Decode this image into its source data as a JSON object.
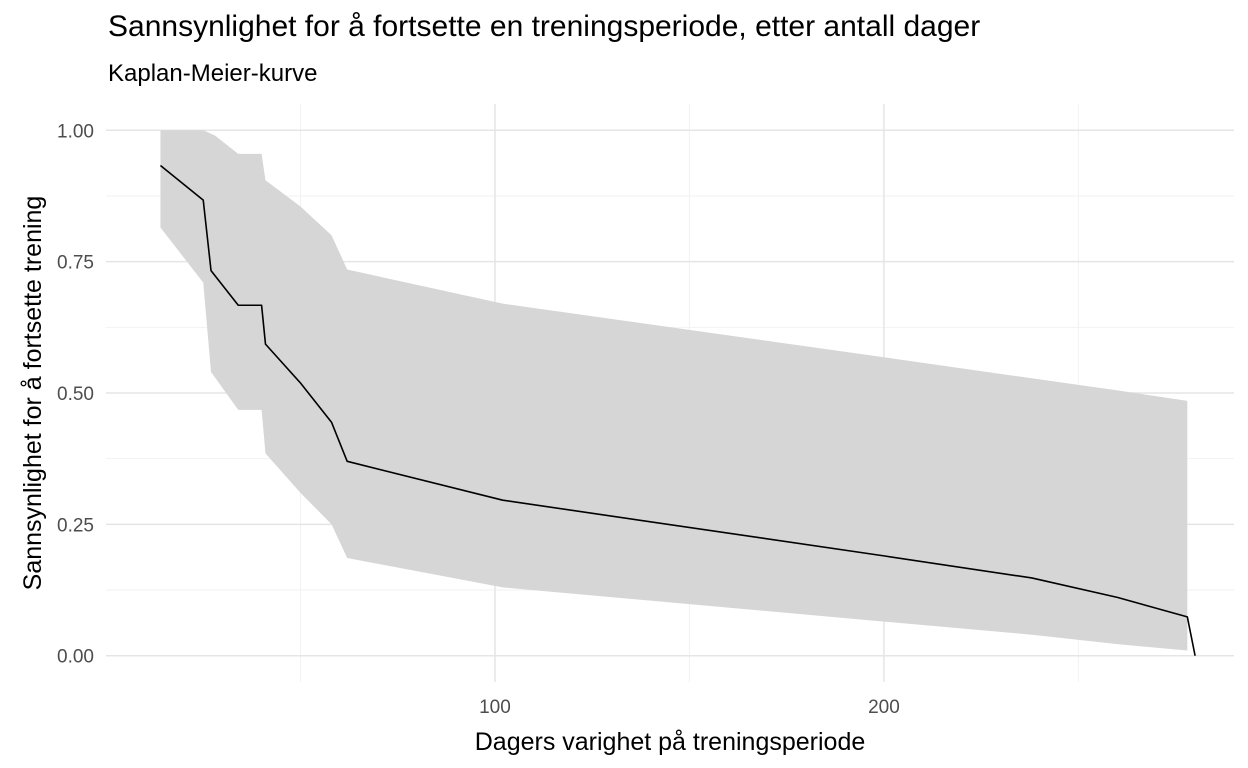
{
  "chart_data": {
    "type": "line",
    "title": "Sannsynlighet for å fortsette en treningsperiode, etter antall dager",
    "subtitle": "Kaplan-Meier-kurve",
    "xlabel": "Dagers varighet på treningsperiode",
    "ylabel": "Sannsynlighet for å fortsette trening",
    "xlim": [
      0,
      290
    ],
    "ylim": [
      -0.05,
      1.05
    ],
    "x_ticks": [
      100,
      200
    ],
    "x_tick_labels": [
      "100",
      "200"
    ],
    "y_ticks": [
      0,
      0.25,
      0.5,
      0.75,
      1.0
    ],
    "y_tick_labels": [
      "0.00",
      "0.25",
      "0.50",
      "0.75",
      "1.00"
    ],
    "grid": true,
    "series": [
      {
        "kind": "survival_estimate",
        "color": "#000000",
        "points": [
          [
            14,
            0.933
          ],
          [
            25,
            0.867
          ],
          [
            27,
            0.733
          ],
          [
            34,
            0.667
          ],
          [
            40,
            0.667
          ],
          [
            41,
            0.593
          ],
          [
            50,
            0.519
          ],
          [
            58,
            0.444
          ],
          [
            62,
            0.37
          ],
          [
            102,
            0.296
          ],
          [
            200,
            0.19
          ],
          [
            238,
            0.148
          ],
          [
            260,
            0.111
          ],
          [
            278,
            0.074
          ],
          [
            280,
            0.0
          ]
        ]
      },
      {
        "kind": "confidence_band",
        "color": "#d6d6d6",
        "upper": [
          [
            14,
            1.0
          ],
          [
            25,
            1.0
          ],
          [
            28,
            0.99
          ],
          [
            34,
            0.955
          ],
          [
            40,
            0.955
          ],
          [
            41,
            0.905
          ],
          [
            50,
            0.855
          ],
          [
            58,
            0.8
          ],
          [
            62,
            0.735
          ],
          [
            102,
            0.67
          ],
          [
            200,
            0.568
          ],
          [
            238,
            0.528
          ],
          [
            260,
            0.505
          ],
          [
            278,
            0.485
          ]
        ],
        "lower": [
          [
            14,
            0.815
          ],
          [
            25,
            0.71
          ],
          [
            27,
            0.54
          ],
          [
            34,
            0.468
          ],
          [
            40,
            0.468
          ],
          [
            41,
            0.385
          ],
          [
            50,
            0.31
          ],
          [
            58,
            0.25
          ],
          [
            62,
            0.186
          ],
          [
            102,
            0.13
          ],
          [
            200,
            0.065
          ],
          [
            238,
            0.04
          ],
          [
            260,
            0.022
          ],
          [
            278,
            0.01
          ]
        ]
      }
    ]
  }
}
